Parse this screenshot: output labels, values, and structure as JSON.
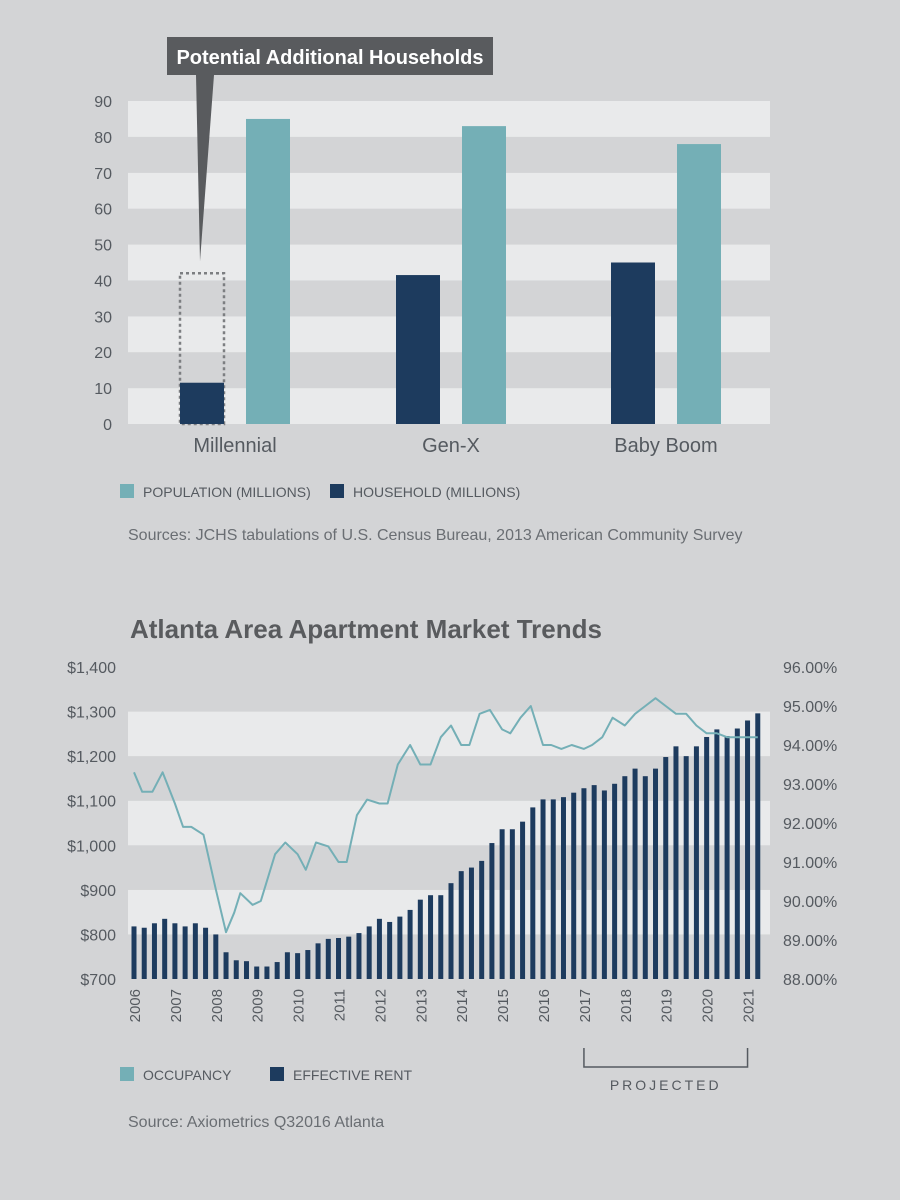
{
  "colors": {
    "background": "#d3d4d6",
    "band_light": "#e9eaeb",
    "population": "#74afb6",
    "household": "#1d3b5e",
    "callout": "#595b5e",
    "text": "#555a60"
  },
  "chart_data": [
    {
      "type": "bar",
      "callout": "Potential Additional Households",
      "categories": [
        "Millennial",
        "Gen-X",
        "Baby Boom"
      ],
      "series": [
        {
          "name": "HOUSEHOLD (MILLIONS)",
          "key": "household",
          "values": [
            11.5,
            41.5,
            45
          ]
        },
        {
          "name": "POPULATION (MILLIONS)",
          "key": "population",
          "values": [
            85,
            83,
            78
          ]
        }
      ],
      "potential_households_millennial": 42,
      "ylim": [
        0,
        90
      ],
      "yticks": [
        "0",
        "10",
        "20",
        "30",
        "40",
        "50",
        "60",
        "70",
        "80",
        "90"
      ],
      "legend": [
        "POPULATION (MILLIONS)",
        "HOUSEHOLD (MILLIONS)"
      ],
      "source": "Sources: JCHS tabulations of U.S. Census Bureau, 2013 American Community Survey"
    },
    {
      "type": "bar",
      "title": "Atlanta Area Apartment Market Trends",
      "left_yticks": [
        "$700",
        "$800",
        "$900",
        "$1,000",
        "$1,100",
        "$1,200",
        "$1,300",
        "$1,400"
      ],
      "right_yticks": [
        "88.00%",
        "89.00%",
        "90.00%",
        "91.00%",
        "92.00%",
        "93.00%",
        "94.00%",
        "95.00%",
        "96.00%"
      ],
      "left_ylim": [
        700,
        1400
      ],
      "right_ylim": [
        88,
        96
      ],
      "x_labels": [
        "2006",
        "2007",
        "2008",
        "2009",
        "2010",
        "2011",
        "2012",
        "2013",
        "2014",
        "2015",
        "2016",
        "2017",
        "2018",
        "2019",
        "2020",
        "2021"
      ],
      "x_range": [
        2006,
        2021.5
      ],
      "effective_rent": {
        "name": "EFFECTIVE RENT",
        "x": [
          2006,
          2006.25,
          2006.5,
          2006.75,
          2007,
          2007.25,
          2007.5,
          2007.75,
          2008,
          2008.25,
          2008.5,
          2008.75,
          2009,
          2009.25,
          2009.5,
          2009.75,
          2010,
          2010.25,
          2010.5,
          2010.75,
          2011,
          2011.25,
          2011.5,
          2011.75,
          2012,
          2012.25,
          2012.5,
          2012.75,
          2013,
          2013.25,
          2013.5,
          2013.75,
          2014,
          2014.25,
          2014.5,
          2014.75,
          2015,
          2015.25,
          2015.5,
          2015.75,
          2016,
          2016.25,
          2016.5,
          2016.75,
          2017,
          2017.25,
          2017.5,
          2017.75,
          2018,
          2018.25,
          2018.5,
          2018.75,
          2019,
          2019.25,
          2019.5,
          2019.75,
          2020,
          2020.25,
          2020.5,
          2020.75,
          2021,
          2021.25
        ],
        "values": [
          818,
          815,
          825,
          835,
          825,
          818,
          825,
          815,
          800,
          760,
          742,
          740,
          728,
          728,
          738,
          760,
          758,
          765,
          780,
          790,
          792,
          795,
          803,
          818,
          835,
          828,
          840,
          855,
          878,
          888,
          888,
          915,
          942,
          950,
          965,
          1005,
          1036,
          1036,
          1053,
          1085,
          1103,
          1103,
          1108,
          1118,
          1128,
          1135,
          1123,
          1138,
          1155,
          1172,
          1155,
          1172,
          1198,
          1222,
          1200,
          1222,
          1243,
          1260,
          1245,
          1262,
          1280,
          1296
        ]
      },
      "occupancy": {
        "name": "OCCUPANCY",
        "x": [
          2006,
          2006.2,
          2006.45,
          2006.7,
          2007,
          2007.2,
          2007.4,
          2007.7,
          2008,
          2008.25,
          2008.45,
          2008.6,
          2008.9,
          2009.1,
          2009.45,
          2009.7,
          2010,
          2010.2,
          2010.45,
          2010.75,
          2011,
          2011.2,
          2011.45,
          2011.7,
          2012,
          2012.2,
          2012.45,
          2012.75,
          2013,
          2013.25,
          2013.5,
          2013.75,
          2014,
          2014.2,
          2014.45,
          2014.7,
          2015,
          2015.2,
          2015.45,
          2015.7,
          2016,
          2016.2,
          2016.45,
          2016.7,
          2017,
          2017.2,
          2017.45,
          2017.7,
          2018,
          2018.25,
          2018.5,
          2018.75,
          2019,
          2019.25,
          2019.5,
          2019.75,
          2020,
          2020.25,
          2020.5,
          2020.75,
          2021,
          2021.25
        ],
        "values": [
          93.3,
          92.8,
          92.8,
          93.3,
          92.5,
          91.9,
          91.9,
          91.7,
          90.3,
          89.2,
          89.7,
          90.2,
          89.9,
          90.0,
          91.2,
          91.5,
          91.2,
          90.8,
          91.5,
          91.4,
          91.0,
          91.0,
          92.2,
          92.6,
          92.5,
          92.5,
          93.5,
          94.0,
          93.5,
          93.5,
          94.2,
          94.5,
          94.0,
          94.0,
          94.8,
          94.9,
          94.4,
          94.3,
          94.7,
          95.0,
          94.0,
          94.0,
          93.9,
          94.0,
          93.9,
          94.0,
          94.2,
          94.7,
          94.5,
          94.8,
          95.0,
          95.2,
          95.0,
          94.8,
          94.8,
          94.5,
          94.3,
          94.3,
          94.2,
          94.2,
          94.2,
          94.2
        ]
      },
      "projected_label": "PROJECTED",
      "projected_range": [
        2017,
        2021
      ],
      "legend": [
        "OCCUPANCY",
        "EFFECTIVE RENT"
      ],
      "source": "Source: Axiometrics Q32016 Atlanta"
    }
  ]
}
